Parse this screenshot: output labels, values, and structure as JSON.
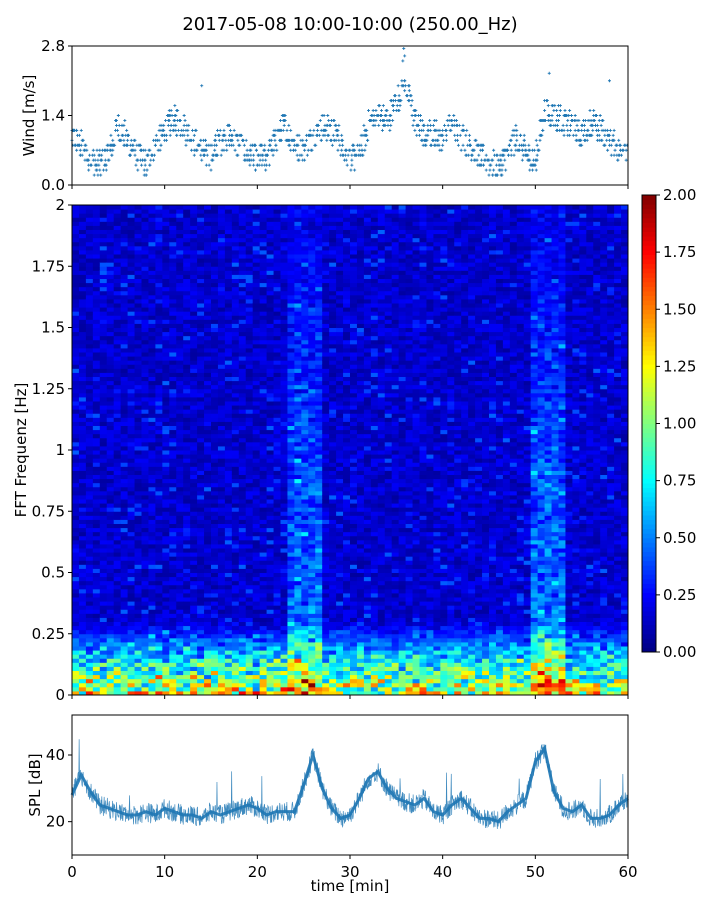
{
  "title": "2017-05-08 10:00-10:00 (250.00_Hz)",
  "colors": {
    "series": "#1f77b4",
    "axis": "#000000",
    "background": "#ffffff",
    "colormap": "jet"
  },
  "chart_data": [
    {
      "id": "wind",
      "type": "scatter",
      "title": "",
      "xlabel": "",
      "ylabel": "Wind [m/s]",
      "xlim": [
        0,
        60
      ],
      "ylim": [
        0,
        2.8
      ],
      "yticks": [
        "0.0",
        "1.4",
        "2.8"
      ],
      "marker": "+",
      "series": [
        {
          "x": [
            0,
            1,
            2,
            3,
            4,
            5,
            6,
            7,
            8,
            9,
            10,
            11,
            12,
            13,
            14,
            15,
            16,
            17,
            18,
            19,
            20,
            21,
            22,
            23,
            24,
            25,
            26,
            27,
            28,
            29,
            30,
            31,
            32,
            33,
            34,
            35,
            36,
            37,
            38,
            39,
            40,
            41,
            42,
            43,
            44,
            45,
            46,
            47,
            48,
            49,
            50,
            51,
            52,
            53,
            54,
            55,
            56,
            57,
            58,
            59,
            60
          ],
          "y": [
            1.0,
            0.8,
            0.5,
            0.4,
            0.6,
            1.2,
            0.9,
            0.6,
            0.4,
            0.8,
            1.1,
            1.3,
            1.2,
            0.9,
            0.7,
            0.6,
            0.9,
            1.0,
            0.8,
            0.6,
            0.5,
            0.6,
            0.9,
            1.2,
            0.8,
            0.7,
            1.0,
            1.2,
            1.1,
            0.9,
            0.5,
            0.6,
            1.2,
            1.4,
            1.3,
            1.7,
            2.0,
            1.3,
            1.0,
            1.1,
            0.9,
            1.2,
            1.0,
            0.8,
            0.6,
            0.4,
            0.4,
            0.6,
            1.0,
            0.6,
            0.5,
            1.5,
            1.4,
            1.3,
            1.2,
            1.0,
            1.3,
            1.1,
            0.9,
            0.7,
            0.8
          ]
        }
      ]
    },
    {
      "id": "spectrogram",
      "type": "heatmap",
      "title": "",
      "xlabel": "",
      "ylabel": "FFT Frequenz [Hz]",
      "xlim": [
        0,
        60
      ],
      "ylim": [
        0,
        2
      ],
      "yticks": [
        "0",
        "0.25",
        "0.5",
        "0.75",
        "1",
        "1.25",
        "1.5",
        "1.75",
        "2"
      ],
      "colorbar": {
        "range": [
          0,
          2.0
        ],
        "ticks": [
          "0.00",
          "0.25",
          "0.50",
          "0.75",
          "1.00",
          "1.25",
          "1.50",
          "1.75",
          "2.00"
        ]
      },
      "baseline_level": 0.15,
      "high_activity_minutes": [
        {
          "start": 23.5,
          "end": 27,
          "level": 0.55
        },
        {
          "start": 49.5,
          "end": 53,
          "level": 0.6
        }
      ],
      "low_frequency_band": {
        "max_hz": 0.3,
        "peak_level": 1.6
      }
    },
    {
      "id": "spl",
      "type": "line",
      "title": "",
      "xlabel": "time [min]",
      "ylabel": "SPL [dB]",
      "xlim": [
        0,
        60
      ],
      "ylim": [
        10,
        52
      ],
      "xticks": [
        "0",
        "10",
        "20",
        "30",
        "40",
        "50",
        "60"
      ],
      "yticks": [
        "20",
        "40"
      ],
      "series": [
        {
          "x": [
            0,
            1,
            2,
            3,
            4,
            5,
            6,
            7,
            8,
            9,
            10,
            11,
            12,
            13,
            14,
            15,
            16,
            17,
            18,
            19,
            20,
            21,
            22,
            23,
            24,
            25,
            26,
            27,
            28,
            29,
            30,
            31,
            32,
            33,
            34,
            35,
            36,
            37,
            38,
            39,
            40,
            41,
            42,
            43,
            44,
            45,
            46,
            47,
            48,
            49,
            50,
            51,
            52,
            53,
            54,
            55,
            56,
            57,
            58,
            59,
            60
          ],
          "y": [
            28,
            34,
            29,
            25,
            24,
            23,
            22,
            22,
            23,
            22,
            24,
            23,
            22,
            22,
            21,
            23,
            22,
            23,
            24,
            25,
            24,
            22,
            23,
            23,
            23,
            31,
            40,
            30,
            24,
            21,
            22,
            27,
            33,
            35,
            30,
            27,
            26,
            25,
            27,
            23,
            22,
            25,
            27,
            24,
            21,
            21,
            20,
            23,
            25,
            27,
            38,
            42,
            29,
            24,
            23,
            25,
            21,
            21,
            22,
            25,
            27
          ]
        }
      ]
    }
  ]
}
